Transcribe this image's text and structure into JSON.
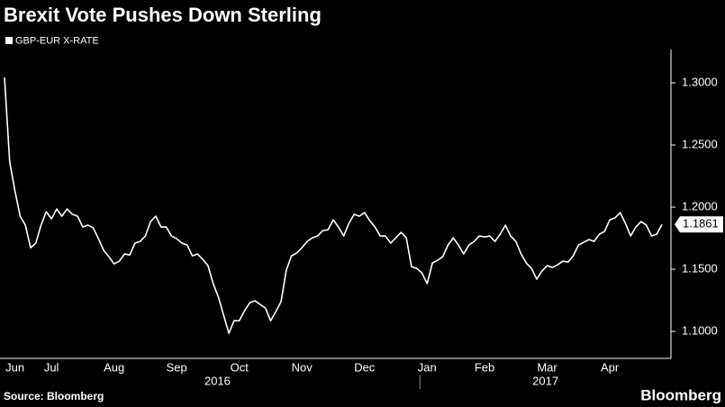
{
  "chart_data": {
    "type": "line",
    "title": "Brexit Vote Pushes Down Sterling",
    "source": "Source: Bloomberg",
    "brand": "Bloomberg",
    "categories": [
      null,
      null,
      "Jun",
      null,
      null,
      null,
      null,
      null,
      null,
      "Jul",
      null,
      null,
      null,
      null,
      null,
      null,
      null,
      null,
      null,
      null,
      null,
      "Aug",
      null,
      null,
      null,
      null,
      null,
      null,
      null,
      null,
      null,
      null,
      null,
      "Sep",
      null,
      null,
      null,
      null,
      null,
      null,
      null,
      null,
      null,
      null,
      null,
      "Oct",
      null,
      null,
      null,
      null,
      null,
      null,
      null,
      null,
      null,
      null,
      null,
      "Nov",
      null,
      null,
      null,
      null,
      null,
      null,
      null,
      null,
      null,
      null,
      null,
      "Dec",
      null,
      null,
      null,
      null,
      null,
      null,
      null,
      null,
      null,
      null,
      null,
      "Jan",
      null,
      null,
      null,
      null,
      null,
      null,
      null,
      null,
      null,
      null,
      "Feb",
      null,
      null,
      null,
      null,
      null,
      null,
      null,
      null,
      null,
      null,
      null,
      "Mar",
      null,
      null,
      null,
      null,
      null,
      null,
      null,
      null,
      null,
      null,
      null,
      "Apr",
      null,
      null,
      null,
      null,
      null,
      null,
      null,
      null,
      null,
      null
    ],
    "year_labels": [
      "2016",
      "2017"
    ],
    "series": [
      {
        "name": "GBP-EUR X-RATE",
        "color": "#ffffff",
        "values": [
          1.3043,
          1.2362,
          1.213,
          1.1927,
          1.1855,
          1.1673,
          1.171,
          1.1855,
          1.1963,
          1.1905,
          1.1985,
          1.1927,
          1.1985,
          1.1942,
          1.1927,
          1.184,
          1.1855,
          1.1833,
          1.1746,
          1.1652,
          1.1601,
          1.1543,
          1.1565,
          1.1623,
          1.1615,
          1.171,
          1.1724,
          1.1768,
          1.1884,
          1.1927,
          1.184,
          1.184,
          1.1768,
          1.1746,
          1.171,
          1.1695,
          1.1608,
          1.1623,
          1.1579,
          1.1529,
          1.1384,
          1.1275,
          1.113,
          1.0985,
          1.1086,
          1.1086,
          1.1166,
          1.1231,
          1.1246,
          1.1217,
          1.1188,
          1.1086,
          1.1159,
          1.1239,
          1.1492,
          1.1608,
          1.163,
          1.1673,
          1.1724,
          1.1753,
          1.1768,
          1.1811,
          1.1818,
          1.1898,
          1.184,
          1.1768,
          1.1869,
          1.1942,
          1.1927,
          1.1956,
          1.1891,
          1.184,
          1.1768,
          1.1768,
          1.171,
          1.1753,
          1.1797,
          1.1753,
          1.1521,
          1.1507,
          1.147,
          1.1384,
          1.155,
          1.1572,
          1.1601,
          1.1695,
          1.1753,
          1.1695,
          1.1623,
          1.1695,
          1.1724,
          1.1768,
          1.176,
          1.1768,
          1.1724,
          1.1782,
          1.1855,
          1.1768,
          1.1724,
          1.1623,
          1.155,
          1.1507,
          1.142,
          1.1485,
          1.1529,
          1.1514,
          1.1536,
          1.1565,
          1.1558,
          1.1608,
          1.1695,
          1.1717,
          1.1739,
          1.1724,
          1.1782,
          1.1804,
          1.1898,
          1.1913,
          1.1956,
          1.1869,
          1.1768,
          1.184,
          1.1884,
          1.1855,
          1.1768,
          1.1782,
          1.1861
        ]
      }
    ],
    "ylim": [
      1.0783,
      1.3268
    ],
    "yticks": [
      {
        "value": 1.1,
        "label": "1.1000"
      },
      {
        "value": 1.15,
        "label": "1.1500"
      },
      {
        "value": 1.2,
        "label": "1.2000"
      },
      {
        "value": 1.25,
        "label": "1.2500"
      },
      {
        "value": 1.3,
        "label": "1.3000"
      }
    ],
    "grid": false,
    "last_value_label": true
  }
}
